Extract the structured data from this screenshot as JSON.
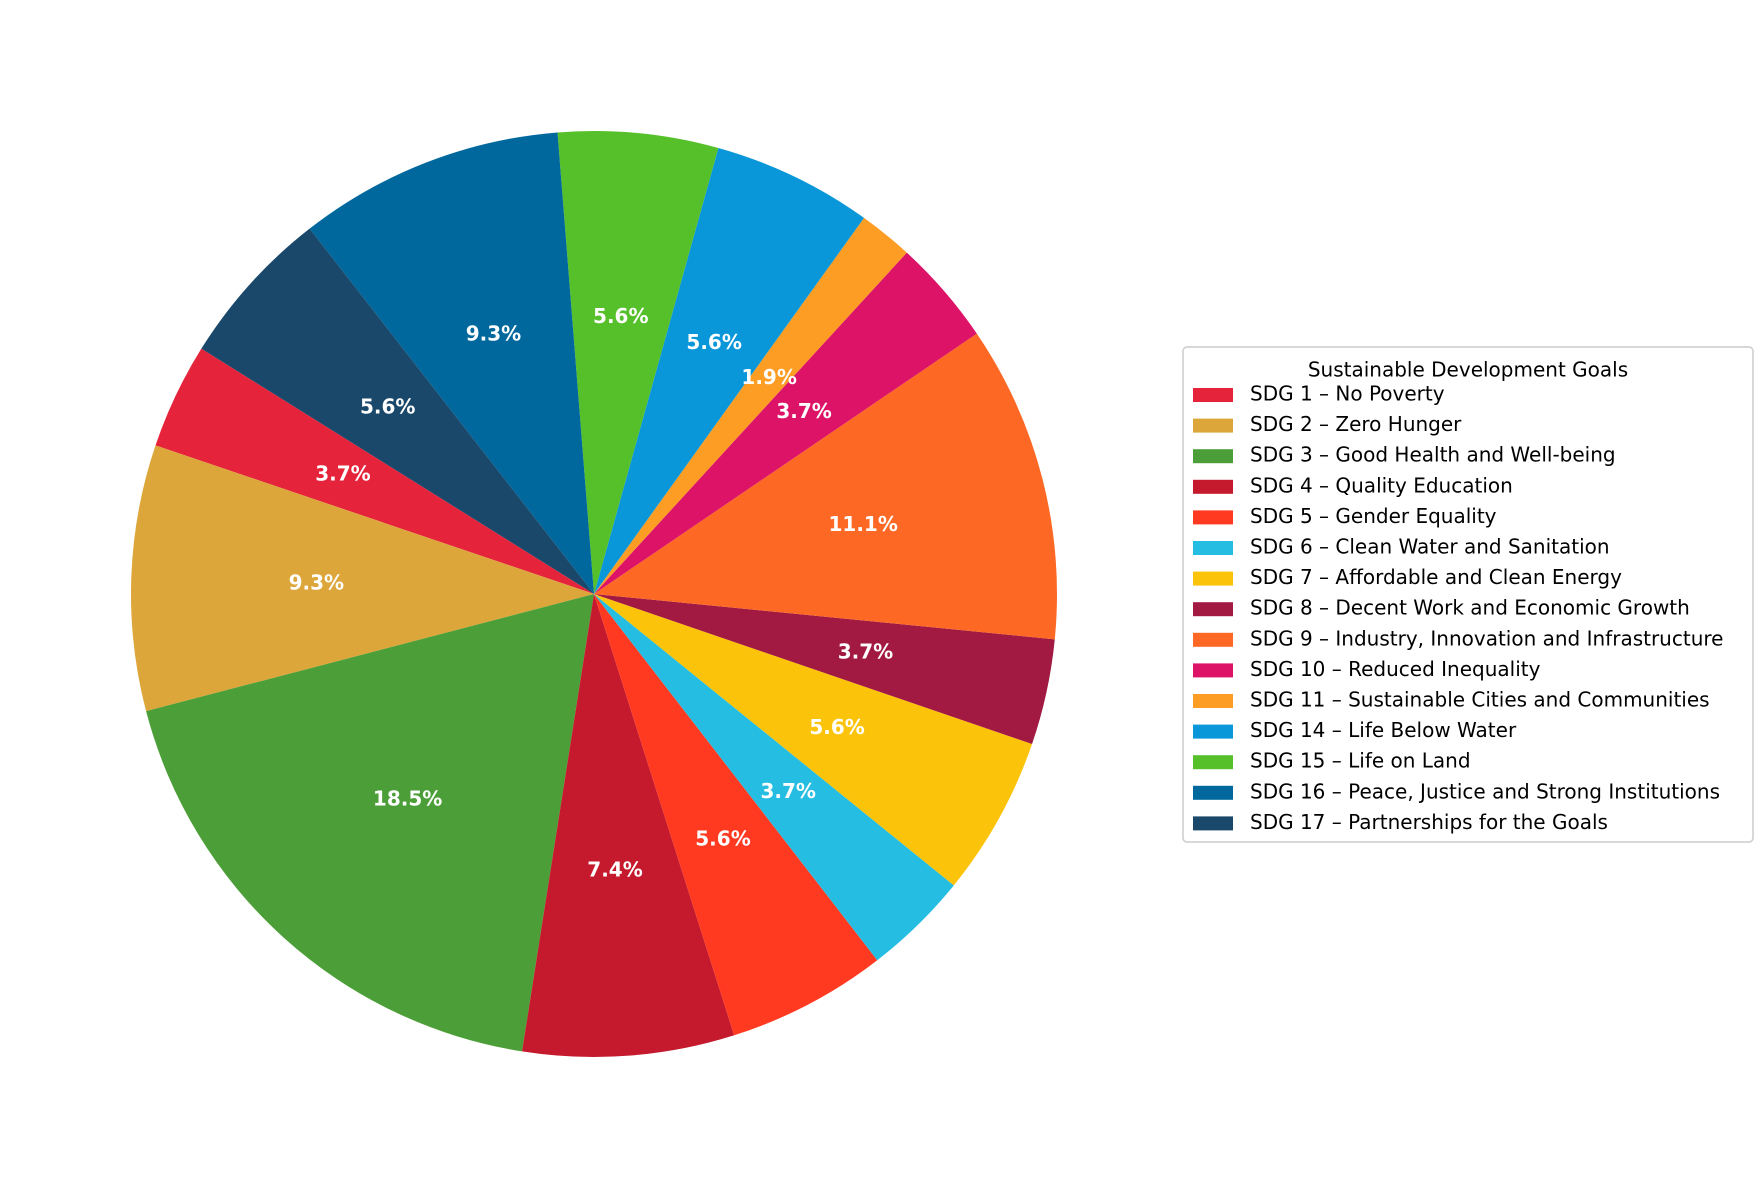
{
  "chart_data": {
    "type": "pie",
    "start_angle_deg": 148,
    "direction": "counterclockwise",
    "legend": {
      "title": "Sustainable Development Goals",
      "placement": "center-right"
    },
    "slices": [
      {
        "label": "SDG 1 – No Poverty",
        "value": 3.7,
        "pct_label": "3.7%",
        "color": "#E5243B"
      },
      {
        "label": "SDG 2 – Zero Hunger",
        "value": 9.3,
        "pct_label": "9.3%",
        "color": "#DDA63A"
      },
      {
        "label": "SDG 3 – Good Health and Well-being",
        "value": 18.5,
        "pct_label": "18.5%",
        "color": "#4C9F38"
      },
      {
        "label": "SDG 4 – Quality Education",
        "value": 7.4,
        "pct_label": "7.4%",
        "color": "#C5192D"
      },
      {
        "label": "SDG 5 – Gender Equality",
        "value": 5.6,
        "pct_label": "5.6%",
        "color": "#FF3A21"
      },
      {
        "label": "SDG 6 – Clean Water and Sanitation",
        "value": 3.7,
        "pct_label": "3.7%",
        "color": "#26BDE2"
      },
      {
        "label": "SDG 7 – Affordable and Clean Energy",
        "value": 5.6,
        "pct_label": "5.6%",
        "color": "#FCC30B"
      },
      {
        "label": "SDG 8 – Decent Work and Economic Growth",
        "value": 3.7,
        "pct_label": "3.7%",
        "color": "#A21942"
      },
      {
        "label": "SDG 9 – Industry, Innovation and Infrastructure",
        "value": 11.1,
        "pct_label": "11.1%",
        "color": "#FD6925"
      },
      {
        "label": "SDG 10 – Reduced Inequality",
        "value": 3.7,
        "pct_label": "3.7%",
        "color": "#DD1367"
      },
      {
        "label": "SDG 11 – Sustainable Cities and Communities",
        "value": 1.9,
        "pct_label": "1.9%",
        "color": "#FD9D24"
      },
      {
        "label": "SDG 14 – Life Below Water",
        "value": 5.6,
        "pct_label": "5.6%",
        "color": "#0A97D9"
      },
      {
        "label": "SDG 15 – Life on Land",
        "value": 5.6,
        "pct_label": "5.6%",
        "color": "#56C02B"
      },
      {
        "label": "SDG 16 – Peace, Justice and Strong Institutions",
        "value": 9.3,
        "pct_label": "9.3%",
        "color": "#00689D"
      },
      {
        "label": "SDG 17 – Partnerships for the Goals",
        "value": 5.6,
        "pct_label": "5.6%",
        "color": "#19486A"
      }
    ]
  }
}
